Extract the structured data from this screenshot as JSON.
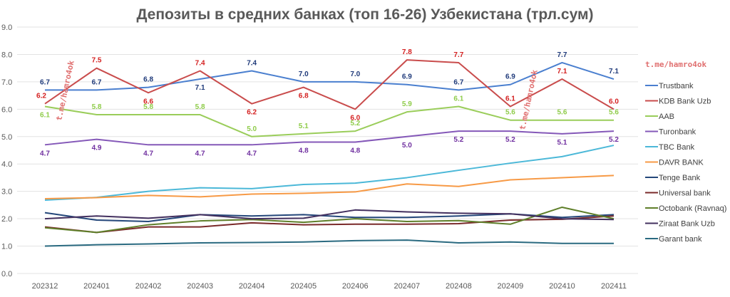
{
  "chart_data": {
    "type": "line",
    "title": "Депозиты в средних банках (топ 16-26) Узбекистана (трл.сум)",
    "xlabel": "",
    "ylabel": "",
    "ylim": [
      0,
      9
    ],
    "yticks": [
      "0.0",
      "1.0",
      "2.0",
      "3.0",
      "4.0",
      "5.0",
      "6.0",
      "7.0",
      "8.0",
      "9.0"
    ],
    "grid": true,
    "legend_position": "right",
    "categories": [
      "202312",
      "202401",
      "202402",
      "202403",
      "202404",
      "202405",
      "202406",
      "202407",
      "202408",
      "202409",
      "202410",
      "202411"
    ],
    "series": [
      {
        "name": "Trustbank",
        "color": "#4a7fcf",
        "label_color": "#1f3a7a",
        "labeled": true,
        "values": [
          6.7,
          6.7,
          6.8,
          7.1,
          7.4,
          7.0,
          7.0,
          6.9,
          6.7,
          6.9,
          7.7,
          7.1
        ]
      },
      {
        "name": "KDB Bank Uzb",
        "color": "#c94c4c",
        "label_color": "#d42020",
        "labeled": true,
        "values": [
          6.2,
          7.5,
          6.6,
          7.4,
          6.2,
          6.8,
          6.0,
          7.8,
          7.7,
          6.1,
          7.1,
          6.0
        ]
      },
      {
        "name": "AAB",
        "color": "#9acd5a",
        "label_color": "#8fcc4a",
        "labeled": true,
        "values": [
          6.1,
          5.8,
          5.8,
          5.8,
          5.0,
          5.1,
          5.2,
          5.9,
          6.1,
          5.6,
          5.6,
          5.6
        ]
      },
      {
        "name": "Turonbank",
        "color": "#8458b8",
        "label_color": "#7030a0",
        "labeled": true,
        "values": [
          4.7,
          4.9,
          4.7,
          4.7,
          4.7,
          4.8,
          4.8,
          5.0,
          5.2,
          5.2,
          5.1,
          5.2
        ]
      },
      {
        "name": "TBC Bank",
        "color": "#4bb8d8",
        "labeled": false,
        "values": [
          2.68,
          2.78,
          3.0,
          3.13,
          3.1,
          3.25,
          3.3,
          3.5,
          3.77,
          4.03,
          4.27,
          4.68
        ]
      },
      {
        "name": "DAVR BANK",
        "color": "#f79a46",
        "labeled": false,
        "values": [
          2.73,
          2.77,
          2.85,
          2.8,
          2.9,
          2.93,
          2.98,
          3.27,
          3.18,
          3.42,
          3.5,
          3.58
        ]
      },
      {
        "name": "Tenge Bank",
        "color": "#24477a",
        "labeled": false,
        "values": [
          2.22,
          1.95,
          1.9,
          2.15,
          2.1,
          2.15,
          2.05,
          2.05,
          2.1,
          2.18,
          2.05,
          2.15
        ]
      },
      {
        "name": "Universal bank",
        "color": "#7a2a2a",
        "labeled": false,
        "values": [
          1.7,
          1.5,
          1.7,
          1.7,
          1.85,
          1.78,
          1.8,
          1.8,
          1.82,
          1.95,
          1.98,
          2.1
        ]
      },
      {
        "name": "Octobank (Ravnaq)",
        "color": "#5f7f2a",
        "labeled": false,
        "values": [
          1.67,
          1.5,
          1.78,
          1.92,
          1.97,
          1.87,
          2.0,
          1.9,
          1.93,
          1.8,
          2.42,
          2.0
        ]
      },
      {
        "name": "Ziraat Bank Uzb",
        "color": "#43305f",
        "labeled": false,
        "values": [
          2.0,
          2.1,
          2.02,
          2.15,
          2.0,
          2.02,
          2.32,
          2.25,
          2.2,
          2.18,
          2.0,
          1.97
        ]
      },
      {
        "name": "Garant bank",
        "color": "#2a6a80",
        "labeled": false,
        "values": [
          1.0,
          1.05,
          1.08,
          1.12,
          1.13,
          1.15,
          1.2,
          1.22,
          1.12,
          1.15,
          1.1,
          1.1
        ]
      }
    ],
    "annotations": [
      "t.me/hamro4ok",
      "t.me/hamro4ok",
      "t.me/hamro4ok"
    ]
  }
}
